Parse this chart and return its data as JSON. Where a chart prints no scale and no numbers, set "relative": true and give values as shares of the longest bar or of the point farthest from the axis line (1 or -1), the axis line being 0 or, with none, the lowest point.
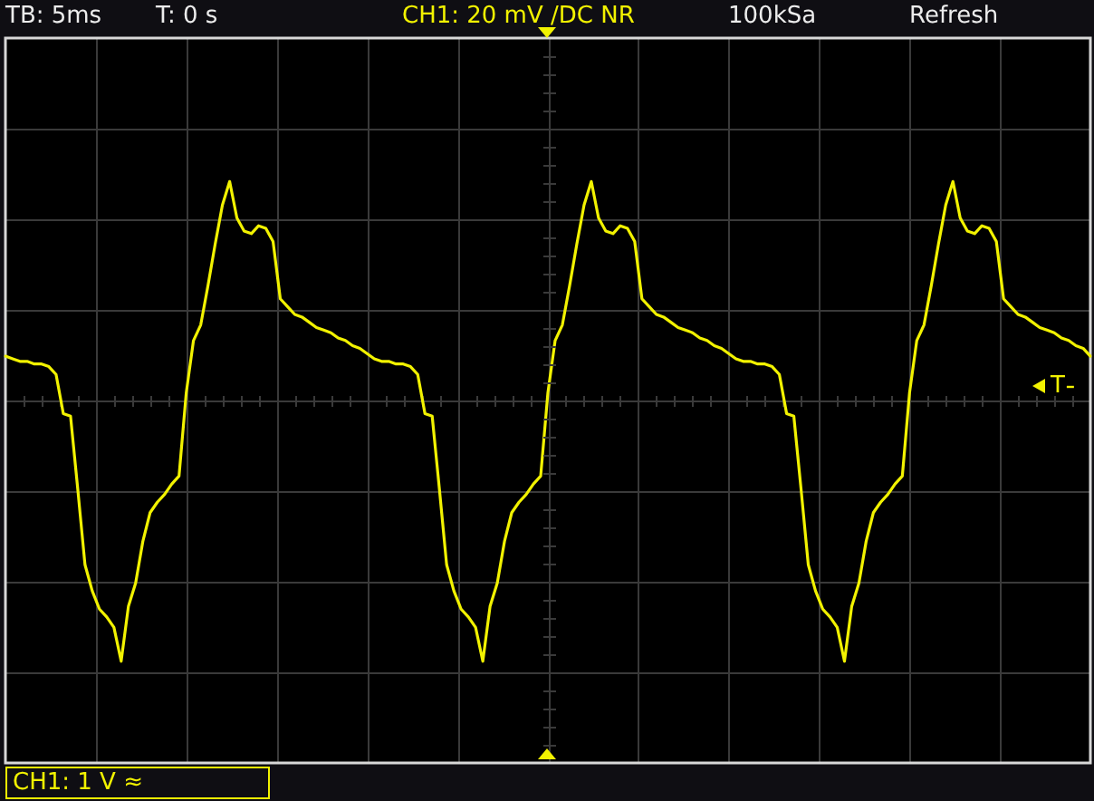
{
  "chart_data": {
    "type": "line",
    "relative": true,
    "grid": true,
    "categories": [
      null,
      null,
      null,
      null,
      null,
      null,
      null,
      null,
      null,
      null,
      null,
      null,
      null,
      null,
      null,
      null,
      null,
      null,
      null,
      null,
      null,
      null,
      null,
      null,
      null,
      null,
      null,
      null,
      null,
      null,
      null,
      null,
      null,
      null,
      null,
      null,
      null,
      null,
      null,
      null,
      null,
      null,
      null,
      null,
      null,
      null,
      null,
      null,
      null,
      null,
      null,
      null,
      null,
      null,
      null,
      null,
      null,
      null,
      null,
      null,
      null,
      null,
      null,
      null,
      null,
      null,
      null,
      null,
      null,
      null,
      null,
      null,
      null,
      null,
      null,
      null,
      null,
      null,
      null,
      null,
      null,
      null,
      null,
      null,
      null,
      null,
      null,
      null,
      null,
      null,
      null,
      null,
      null,
      null,
      null,
      null,
      null,
      null,
      null,
      null,
      null,
      null,
      null,
      null,
      null,
      null,
      null,
      null,
      null,
      null,
      null,
      null,
      null,
      null,
      null,
      null,
      null,
      null,
      null,
      null,
      null,
      null,
      null,
      null,
      null,
      null,
      null,
      null,
      null,
      null,
      null,
      null,
      null,
      null,
      null,
      null,
      null,
      null,
      null,
      null,
      null,
      null,
      null,
      null,
      null,
      null,
      null,
      null,
      null,
      null,
      null
    ],
    "series": [
      {
        "color": "#f2f200",
        "values": [
          0.17,
          0.16,
          0.15,
          0.15,
          0.14,
          0.14,
          0.13,
          0.1,
          -0.05,
          -0.06,
          -0.34,
          -0.63,
          -0.73,
          -0.8,
          -0.83,
          -0.87,
          -1,
          -0.79,
          -0.7,
          -0.54,
          -0.43,
          -0.39,
          -0.36,
          -0.32,
          -0.29,
          0.03,
          0.23,
          0.29,
          0.44,
          0.6,
          0.75,
          0.84,
          0.7,
          0.65,
          0.64,
          0.67,
          0.66,
          0.61,
          0.39,
          0.36,
          0.33,
          0.32,
          0.3,
          0.28,
          0.27,
          0.26,
          0.24,
          0.23,
          0.21,
          0.2,
          0.18,
          0.16,
          0.15,
          0.15,
          0.14,
          0.14,
          0.13,
          0.1,
          -0.05,
          -0.06,
          -0.34,
          -0.63,
          -0.73,
          -0.8,
          -0.83,
          -0.87,
          -1,
          -0.79,
          -0.7,
          -0.54,
          -0.43,
          -0.39,
          -0.36,
          -0.32,
          -0.29,
          0.03,
          0.23,
          0.29,
          0.44,
          0.6,
          0.75,
          0.84,
          0.7,
          0.65,
          0.64,
          0.67,
          0.66,
          0.61,
          0.39,
          0.36,
          0.33,
          0.32,
          0.3,
          0.28,
          0.27,
          0.26,
          0.24,
          0.23,
          0.21,
          0.2,
          0.18,
          0.16,
          0.15,
          0.15,
          0.14,
          0.14,
          0.13,
          0.1,
          -0.05,
          -0.06,
          -0.34,
          -0.63,
          -0.73,
          -0.8,
          -0.83,
          -0.87,
          -1,
          -0.79,
          -0.7,
          -0.54,
          -0.43,
          -0.39,
          -0.36,
          -0.32,
          -0.29,
          0.03,
          0.23,
          0.29,
          0.44,
          0.6,
          0.75,
          0.84,
          0.7,
          0.65,
          0.64,
          0.67,
          0.66,
          0.61,
          0.39,
          0.36,
          0.33,
          0.32,
          0.3,
          0.28,
          0.27,
          0.26,
          0.24,
          0.23,
          0.21,
          0.2,
          0.17
        ]
      }
    ],
    "annotations": [
      "TB: 5ms",
      "T: 0 s",
      "CH1: 20 mV /DC NR",
      "100kSa",
      "Refresh",
      "CH1: 1 V ≈",
      "T"
    ]
  }
}
